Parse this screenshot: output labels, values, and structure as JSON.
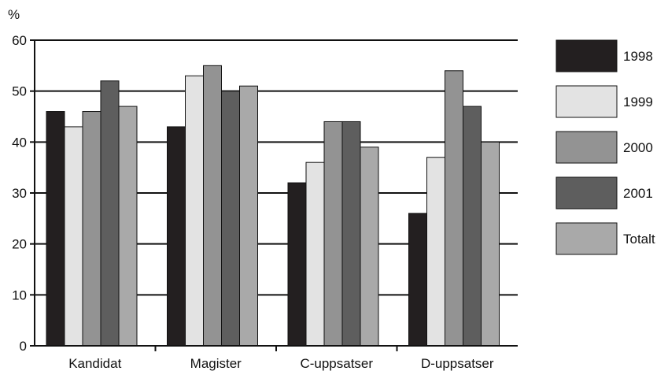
{
  "chart_data": {
    "type": "bar",
    "ylabel": "%",
    "ylim": [
      0,
      60
    ],
    "yticks": [
      0,
      10,
      20,
      30,
      40,
      50,
      60
    ],
    "grid": true,
    "legend_position": "right",
    "categories": [
      "Kandidat",
      "Magister",
      "C-uppsatser",
      "D-uppsatser"
    ],
    "series": [
      {
        "name": "1998",
        "color": "#231f20",
        "values": [
          46,
          43,
          32,
          26
        ]
      },
      {
        "name": "1999",
        "color": "#e3e3e3",
        "values": [
          43,
          53,
          36,
          37
        ]
      },
      {
        "name": "2000",
        "color": "#939393",
        "values": [
          46,
          55,
          44,
          54
        ]
      },
      {
        "name": "2001",
        "color": "#5e5e5e",
        "values": [
          52,
          50,
          44,
          47
        ]
      },
      {
        "name": "Totalt",
        "color": "#a9a9a9",
        "values": [
          47,
          51,
          39,
          40
        ]
      }
    ]
  }
}
